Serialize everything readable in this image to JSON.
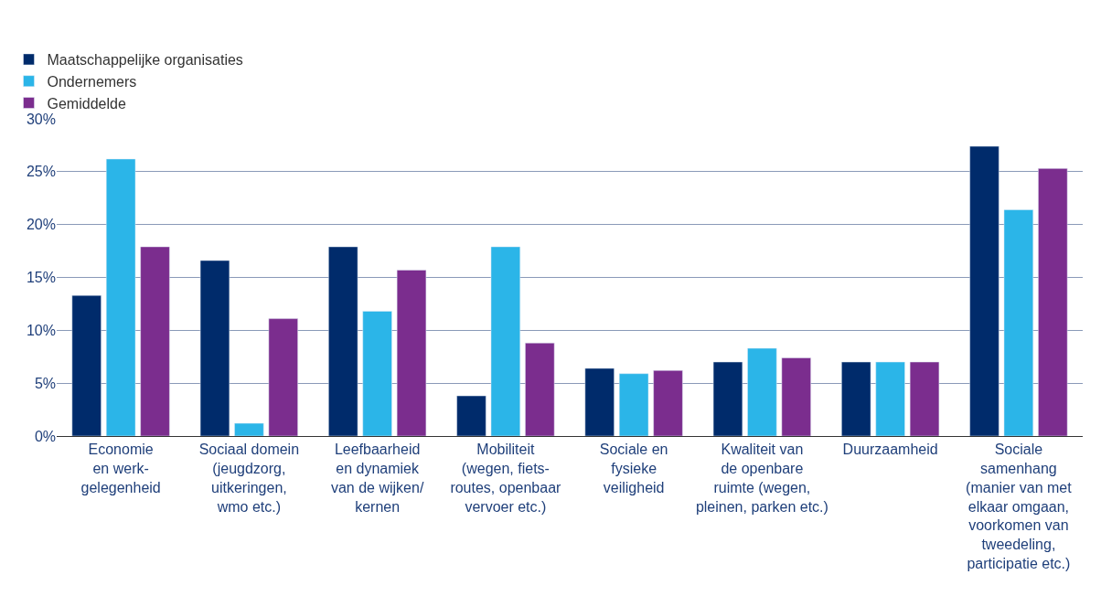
{
  "chart_data": {
    "type": "bar",
    "categories": [
      "Economie\nen werk-\ngelegenheid",
      "Sociaal domein\n(jeugdzorg,\nuitkeringen,\nwmo etc.)",
      "Leefbaarheid\nen dynamiek\nvan de wijken/\nkernen",
      "Mobiliteit\n(wegen, fiets-\nroutes, openbaar\nvervoer etc.)",
      "Sociale en\nfysieke\nveiligheid",
      "Kwaliteit van\nde openbare\nruimte (wegen,\npleinen, parken etc.)",
      "Duurzaamheid",
      "Sociale\nsamenhang\n(manier van met\nelkaar omgaan,\nvoorkomen van\ntweedeling,\nparticipatie etc.)"
    ],
    "series": [
      {
        "name": "Maatschappelijke organisaties",
        "color": "#002b6b",
        "values": [
          13.3,
          16.6,
          17.9,
          3.8,
          6.4,
          7.0,
          7.0,
          27.4
        ]
      },
      {
        "name": "Ondernemers",
        "color": "#2bb5e8",
        "values": [
          26.2,
          1.2,
          11.8,
          17.9,
          5.9,
          8.3,
          7.0,
          21.4
        ]
      },
      {
        "name": "Gemiddelde",
        "color": "#7b2d8e",
        "values": [
          17.9,
          11.1,
          15.7,
          8.8,
          6.2,
          7.4,
          7.0,
          25.3
        ]
      }
    ],
    "ylim": [
      0,
      30
    ],
    "yticks": [
      {
        "value": 0,
        "label": "0%"
      },
      {
        "value": 5,
        "label": "5%"
      },
      {
        "value": 10,
        "label": "10%"
      },
      {
        "value": 15,
        "label": "15%"
      },
      {
        "value": 20,
        "label": "20%"
      },
      {
        "value": 25,
        "label": "25%"
      },
      {
        "value": 30,
        "label": "30%"
      }
    ],
    "grid": "y",
    "legend": "top left"
  }
}
